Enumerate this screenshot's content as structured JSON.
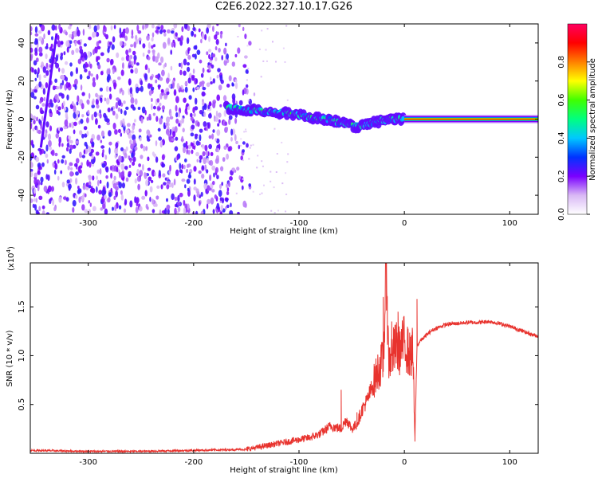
{
  "title": "C2E6.2022.327.10.17.G26",
  "chart_data": [
    {
      "type": "heatmap",
      "xlabel": "Height of straight line (km)",
      "ylabel": "Frequency (Hz)",
      "xlim": [
        -355,
        127
      ],
      "ylim": [
        -50,
        50
      ],
      "xticks": [
        -300,
        -200,
        -100,
        0,
        100
      ],
      "yticks": [
        -40,
        -20,
        0,
        20,
        40
      ],
      "colorbar": {
        "label": "Normalized spectral amplitude",
        "range": [
          0,
          1
        ],
        "ticks": [
          "0.0",
          "0.2",
          "0.4",
          "0.6",
          "0.8"
        ],
        "colors": [
          "#ffffff",
          "#d9b8f5",
          "#7a00ff",
          "#0033ff",
          "#00c8ff",
          "#00ff80",
          "#40ff00",
          "#ffff00",
          "#ff8000",
          "#ff0000",
          "#ff0060"
        ]
      },
      "features": {
        "noise_region_x": [
          -355,
          -150
        ],
        "noise_fade_x": [
          -180,
          -140
        ],
        "drift_line": {
          "x": [
            -169,
            -150,
            -130,
            -110,
            -90,
            -75,
            -60,
            -45,
            -30,
            -15,
            0
          ],
          "y": [
            6,
            5,
            4,
            3,
            1,
            0,
            -2,
            -4,
            -2,
            0,
            0
          ]
        },
        "carrier": {
          "x": [
            0,
            127
          ],
          "y": 0,
          "amplitude": 1.0
        },
        "diagonal_streak": {
          "x": [
            -345,
            -330
          ],
          "y": [
            -15,
            45
          ]
        }
      }
    },
    {
      "type": "line",
      "xlabel": "Height of straight line (km)",
      "ylabel": "SNR (10 * v/v)",
      "exponent_label": "(x10",
      "exponent_power": "4",
      "exponent_close": ")",
      "xlim": [
        -355,
        127
      ],
      "ylim": [
        0,
        1.95
      ],
      "xticks": [
        -300,
        -200,
        -100,
        0,
        100
      ],
      "yticks": [
        0.5,
        1.0,
        1.5
      ],
      "ytick_labels": [
        "0.5",
        "1.0",
        "1.5"
      ],
      "color": "#e8332e",
      "series": [
        {
          "x": [
            -355,
            -300,
            -250,
            -200,
            -150,
            -130,
            -110,
            -90,
            -80,
            -70,
            -60,
            -55,
            -50,
            -45,
            -40,
            -35,
            -30,
            -25,
            -20,
            -17,
            -15,
            -12,
            -10,
            -7,
            -5,
            -2,
            0,
            5,
            8,
            10,
            12,
            15,
            20,
            25,
            30,
            40,
            50,
            60,
            70,
            80,
            90,
            100,
            110,
            120,
            127
          ],
          "y": [
            0.03,
            0.02,
            0.02,
            0.03,
            0.04,
            0.08,
            0.12,
            0.16,
            0.2,
            0.28,
            0.25,
            0.35,
            0.25,
            0.3,
            0.45,
            0.55,
            0.7,
            0.85,
            0.95,
            1.95,
            0.95,
            1.0,
            1.05,
            1.1,
            1.05,
            1.1,
            1.15,
            1.0,
            1.05,
            0.15,
            1.1,
            1.15,
            1.2,
            1.25,
            1.28,
            1.32,
            1.33,
            1.34,
            1.34,
            1.35,
            1.33,
            1.3,
            1.26,
            1.22,
            1.2
          ]
        }
      ],
      "spikes": {
        "x": [
          -60,
          -45,
          -20,
          -17,
          -12,
          -6,
          10,
          12
        ],
        "y": [
          0.65,
          0.42,
          1.6,
          1.95,
          1.35,
          1.45,
          0.12,
          1.58
        ]
      }
    }
  ]
}
